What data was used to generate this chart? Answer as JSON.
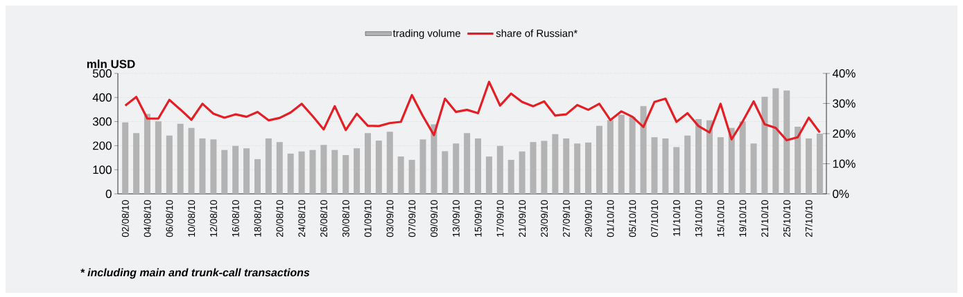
{
  "chart_data": {
    "type": "bar",
    "categories": [
      "02/08/10",
      null,
      "04/08/10",
      null,
      "06/08/10",
      null,
      "10/08/10",
      null,
      "12/08/10",
      null,
      "16/08/10",
      null,
      "18/08/10",
      null,
      "20/08/10",
      null,
      "24/08/10",
      null,
      "26/08/10",
      null,
      "30/08/10",
      null,
      "01/09/10",
      null,
      "03/09/10",
      null,
      "07/09/10",
      null,
      "09/09/10",
      null,
      "13/09/10",
      null,
      "15/09/10",
      null,
      "17/09/10",
      null,
      "21/09/10",
      null,
      "23/09/10",
      null,
      "27/09/10",
      null,
      "29/09/10",
      null,
      "01/10/10",
      null,
      "05/10/10",
      null,
      "07/10/10",
      null,
      "11/10/10",
      null,
      "13/10/10",
      null,
      "15/10/10",
      null,
      "19/10/10",
      null,
      "21/10/10",
      null,
      "25/10/10",
      null,
      "27/10/10",
      null
    ],
    "series": [
      {
        "name": "trading volume",
        "color": "#b3b3b3",
        "values": [
          297,
          252,
          332,
          301,
          242,
          291,
          274,
          230,
          226,
          182,
          199,
          189,
          144,
          230,
          215,
          167,
          176,
          182,
          203,
          182,
          161,
          189,
          252,
          221,
          258,
          155,
          141,
          226,
          289,
          177,
          209,
          252,
          230,
          155,
          199,
          141,
          176,
          215,
          220,
          248,
          230,
          209,
          213,
          282,
          306,
          328,
          320,
          364,
          235,
          230,
          194,
          242,
          310,
          305,
          235,
          274,
          300,
          209,
          403,
          438,
          429,
          279,
          230,
          250
        ]
      },
      {
        "name": "share of Russian*",
        "type": "line",
        "axis": "y2",
        "color": "#e31e24",
        "values": [
          29.3,
          32.2,
          25.0,
          25.0,
          31.2,
          28.0,
          24.6,
          29.9,
          26.6,
          25.3,
          26.4,
          25.6,
          27.2,
          24.4,
          25.2,
          27.0,
          29.9,
          25.8,
          21.4,
          29.1,
          21.2,
          26.6,
          22.6,
          22.5,
          23.5,
          23.9,
          32.8,
          25.8,
          19.5,
          31.6,
          27.2,
          27.9,
          26.8,
          37.2,
          29.3,
          33.3,
          30.5,
          29.1,
          30.7,
          26.0,
          26.4,
          29.5,
          27.9,
          29.9,
          24.5,
          27.4,
          25.6,
          22.2,
          30.5,
          31.6,
          23.9,
          26.8,
          22.5,
          20.4,
          29.9,
          18.1,
          24.0,
          30.7,
          23.1,
          21.9,
          17.8,
          18.8,
          25.3,
          20.4
        ]
      }
    ],
    "ylabel": "mln USD",
    "ylim": [
      0,
      500
    ],
    "yticks": [
      0,
      100,
      200,
      300,
      400,
      500
    ],
    "y2lim": [
      0,
      40
    ],
    "y2ticks": [
      {
        "value": 0,
        "label": "0%"
      },
      {
        "value": 10,
        "label": "10%"
      },
      {
        "value": 20,
        "label": "20%"
      },
      {
        "value": 30,
        "label": "30%"
      },
      {
        "value": 40,
        "label": "40%"
      }
    ],
    "grid": "y",
    "legend": "top",
    "annotations": [
      "* including main and trunk-call transactions"
    ]
  }
}
